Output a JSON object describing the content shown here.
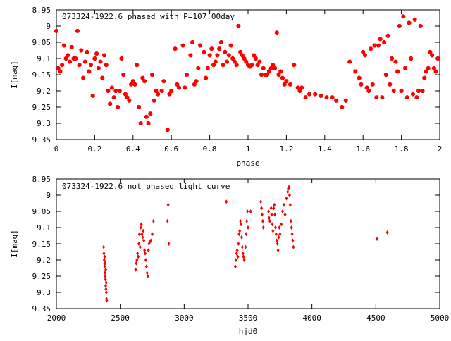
{
  "chart_data": [
    {
      "type": "scatter",
      "title": "073324-1922.6 phased with P=107.00day",
      "xlabel": "phase",
      "ylabel": "I[mag]",
      "xlim": [
        0,
        2
      ],
      "ylim": [
        9.35,
        8.95
      ],
      "y_inverted": true,
      "xticks": [
        "0",
        "0.2",
        "0.4",
        "0.6",
        "0.8",
        "1",
        "1.2",
        "1.4",
        "1.6",
        "1.8",
        "2"
      ],
      "yticks": [
        "8.95",
        "9",
        "9.05",
        "9.1",
        "9.15",
        "9.2",
        "9.25",
        "9.3",
        "9.35"
      ],
      "grid": false,
      "marker_color": "#ff0000",
      "points": [
        [
          0.0,
          9.015
        ],
        [
          0.01,
          9.13
        ],
        [
          0.02,
          9.14
        ],
        [
          0.03,
          9.12
        ],
        [
          0.04,
          9.06
        ],
        [
          0.05,
          9.1
        ],
        [
          0.06,
          9.09
        ],
        [
          0.07,
          9.11
        ],
        [
          0.08,
          9.065
        ],
        [
          0.09,
          9.1
        ],
        [
          0.1,
          9.1
        ],
        [
          0.11,
          9.015
        ],
        [
          0.12,
          9.12
        ],
        [
          0.13,
          9.075
        ],
        [
          0.14,
          9.16
        ],
        [
          0.15,
          9.11
        ],
        [
          0.16,
          9.08
        ],
        [
          0.17,
          9.14
        ],
        [
          0.18,
          9.12
        ],
        [
          0.19,
          9.215
        ],
        [
          0.2,
          9.1
        ],
        [
          0.21,
          9.085
        ],
        [
          0.22,
          9.13
        ],
        [
          0.23,
          9.11
        ],
        [
          0.24,
          9.16
        ],
        [
          0.25,
          9.09
        ],
        [
          0.26,
          9.12
        ],
        [
          0.27,
          9.2
        ],
        [
          0.28,
          9.24
        ],
        [
          0.29,
          9.19
        ],
        [
          0.3,
          9.22
        ],
        [
          0.31,
          9.2
        ],
        [
          0.32,
          9.25
        ],
        [
          0.33,
          9.2
        ],
        [
          0.34,
          9.1
        ],
        [
          0.35,
          9.15
        ],
        [
          0.36,
          9.21
        ],
        [
          0.37,
          9.22
        ],
        [
          0.38,
          9.23
        ],
        [
          0.39,
          9.18
        ],
        [
          0.4,
          9.17
        ],
        [
          0.41,
          9.18
        ],
        [
          0.42,
          9.12
        ],
        [
          0.43,
          9.25
        ],
        [
          0.44,
          9.3
        ],
        [
          0.45,
          9.16
        ],
        [
          0.46,
          9.17
        ],
        [
          0.47,
          9.28
        ],
        [
          0.48,
          9.3
        ],
        [
          0.49,
          9.27
        ],
        [
          0.5,
          9.15
        ],
        [
          0.51,
          9.23
        ],
        [
          0.52,
          9.2
        ],
        [
          0.53,
          9.21
        ],
        [
          0.55,
          9.2
        ],
        [
          0.56,
          9.17
        ],
        [
          0.58,
          9.32
        ],
        [
          0.59,
          9.21
        ],
        [
          0.6,
          9.2
        ],
        [
          0.62,
          9.07
        ],
        [
          0.63,
          9.18
        ],
        [
          0.64,
          9.19
        ],
        [
          0.66,
          9.06
        ],
        [
          0.67,
          9.19
        ],
        [
          0.68,
          9.15
        ],
        [
          0.7,
          9.09
        ],
        [
          0.71,
          9.05
        ],
        [
          0.72,
          9.18
        ],
        [
          0.73,
          9.17
        ],
        [
          0.74,
          9.13
        ],
        [
          0.75,
          9.06
        ],
        [
          0.77,
          9.08
        ],
        [
          0.78,
          9.16
        ],
        [
          0.79,
          9.13
        ],
        [
          0.8,
          9.09
        ],
        [
          0.81,
          9.07
        ],
        [
          0.82,
          9.12
        ],
        [
          0.83,
          9.11
        ],
        [
          0.84,
          9.09
        ],
        [
          0.85,
          9.07
        ],
        [
          0.86,
          9.05
        ],
        [
          0.87,
          9.12
        ],
        [
          0.88,
          9.08
        ],
        [
          0.89,
          9.11
        ],
        [
          0.9,
          9.09
        ],
        [
          0.91,
          9.06
        ],
        [
          0.92,
          9.1
        ],
        [
          0.93,
          9.11
        ],
        [
          0.94,
          9.12
        ],
        [
          0.95,
          9.0
        ],
        [
          0.96,
          9.08
        ],
        [
          0.97,
          9.09
        ],
        [
          0.98,
          9.1
        ],
        [
          0.99,
          9.11
        ],
        [
          1.0,
          9.12
        ],
        [
          1.01,
          9.125
        ],
        [
          1.02,
          9.12
        ],
        [
          1.03,
          9.09
        ],
        [
          1.04,
          9.1
        ],
        [
          1.05,
          9.12
        ],
        [
          1.06,
          9.11
        ],
        [
          1.07,
          9.15
        ],
        [
          1.08,
          9.13
        ],
        [
          1.09,
          9.15
        ],
        [
          1.1,
          9.15
        ],
        [
          1.11,
          9.14
        ],
        [
          1.12,
          9.13
        ],
        [
          1.13,
          9.12
        ],
        [
          1.14,
          9.13
        ],
        [
          1.15,
          9.02
        ],
        [
          1.16,
          9.15
        ],
        [
          1.17,
          9.14
        ],
        [
          1.18,
          9.16
        ],
        [
          1.19,
          9.18
        ],
        [
          1.2,
          9.17
        ],
        [
          1.22,
          9.18
        ],
        [
          1.24,
          9.12
        ],
        [
          1.26,
          9.19
        ],
        [
          1.27,
          9.2
        ],
        [
          1.28,
          9.19
        ],
        [
          1.3,
          9.22
        ],
        [
          1.32,
          9.21
        ],
        [
          1.35,
          9.21
        ],
        [
          1.38,
          9.215
        ],
        [
          1.41,
          9.22
        ],
        [
          1.44,
          9.22
        ],
        [
          1.46,
          9.23
        ],
        [
          1.49,
          9.25
        ],
        [
          1.51,
          9.23
        ],
        [
          1.53,
          9.11
        ],
        [
          1.56,
          9.14
        ],
        [
          1.58,
          9.16
        ],
        [
          1.59,
          9.18
        ],
        [
          1.6,
          9.08
        ],
        [
          1.61,
          9.09
        ],
        [
          1.62,
          9.19
        ],
        [
          1.63,
          9.2
        ],
        [
          1.64,
          9.07
        ],
        [
          1.65,
          9.18
        ],
        [
          1.66,
          9.06
        ],
        [
          1.67,
          9.22
        ],
        [
          1.68,
          9.06
        ],
        [
          1.69,
          9.04
        ],
        [
          1.7,
          9.22
        ],
        [
          1.71,
          9.05
        ],
        [
          1.72,
          9.15
        ],
        [
          1.73,
          9.03
        ],
        [
          1.74,
          9.18
        ],
        [
          1.75,
          9.1
        ],
        [
          1.76,
          9.2
        ],
        [
          1.77,
          9.11
        ],
        [
          1.78,
          9.14
        ],
        [
          1.79,
          9.0
        ],
        [
          1.8,
          9.2
        ],
        [
          1.81,
          8.97
        ],
        [
          1.82,
          9.13
        ],
        [
          1.83,
          9.22
        ],
        [
          1.84,
          8.99
        ],
        [
          1.85,
          9.1
        ],
        [
          1.86,
          9.21
        ],
        [
          1.87,
          8.98
        ],
        [
          1.88,
          9.22
        ],
        [
          1.89,
          9.2
        ],
        [
          1.9,
          9.0
        ],
        [
          1.91,
          9.2
        ],
        [
          1.92,
          9.16
        ],
        [
          1.93,
          9.14
        ],
        [
          1.94,
          9.13
        ],
        [
          1.95,
          9.08
        ],
        [
          1.96,
          9.09
        ],
        [
          1.97,
          9.13
        ],
        [
          1.98,
          9.14
        ],
        [
          1.99,
          9.1
        ]
      ]
    },
    {
      "type": "scatter",
      "title": "073324-1922.6 not phased light curve",
      "xlabel": "hjd0",
      "ylabel": "I[mag]",
      "xlim": [
        2000,
        5000
      ],
      "ylim": [
        9.35,
        8.95
      ],
      "y_inverted": true,
      "xticks": [
        "2000",
        "2500",
        "3000",
        "3500",
        "4000",
        "4500",
        "5000"
      ],
      "yticks": [
        "8.95",
        "9",
        "9.05",
        "9.1",
        "9.15",
        "9.2",
        "9.25",
        "9.3",
        "9.35"
      ],
      "grid": false,
      "marker_color": "#ff0000",
      "points": [
        [
          2370,
          9.16
        ],
        [
          2372,
          9.18
        ],
        [
          2374,
          9.2
        ],
        [
          2376,
          9.21
        ],
        [
          2378,
          9.22
        ],
        [
          2380,
          9.24
        ],
        [
          2382,
          9.25
        ],
        [
          2384,
          9.26
        ],
        [
          2386,
          9.28
        ],
        [
          2388,
          9.29
        ],
        [
          2390,
          9.3
        ],
        [
          2392,
          9.32
        ],
        [
          2394,
          9.325
        ],
        [
          2378,
          9.19
        ],
        [
          2382,
          9.21
        ],
        [
          2386,
          9.23
        ],
        [
          2390,
          9.27
        ],
        [
          2620,
          9.23
        ],
        [
          2625,
          9.21
        ],
        [
          2630,
          9.2
        ],
        [
          2635,
          9.18
        ],
        [
          2640,
          9.19
        ],
        [
          2645,
          9.15
        ],
        [
          2650,
          9.12
        ],
        [
          2655,
          9.16
        ],
        [
          2660,
          9.1
        ],
        [
          2665,
          9.09
        ],
        [
          2670,
          9.12
        ],
        [
          2675,
          9.13
        ],
        [
          2680,
          9.11
        ],
        [
          2685,
          9.14
        ],
        [
          2690,
          9.17
        ],
        [
          2695,
          9.18
        ],
        [
          2700,
          9.2
        ],
        [
          2705,
          9.22
        ],
        [
          2710,
          9.24
        ],
        [
          2715,
          9.25
        ],
        [
          2720,
          9.17
        ],
        [
          2725,
          9.15
        ],
        [
          2730,
          9.145
        ],
        [
          2740,
          9.14
        ],
        [
          2750,
          9.12
        ],
        [
          2760,
          9.08
        ],
        [
          2870,
          9.08
        ],
        [
          2875,
          9.03
        ],
        [
          2880,
          9.15
        ],
        [
          3330,
          9.02
        ],
        [
          3400,
          9.22
        ],
        [
          3405,
          9.2
        ],
        [
          3410,
          9.18
        ],
        [
          3415,
          9.17
        ],
        [
          3420,
          9.19
        ],
        [
          3425,
          9.15
        ],
        [
          3430,
          9.12
        ],
        [
          3435,
          9.11
        ],
        [
          3440,
          9.08
        ],
        [
          3445,
          9.09
        ],
        [
          3450,
          9.13
        ],
        [
          3455,
          9.16
        ],
        [
          3460,
          9.18
        ],
        [
          3465,
          9.19
        ],
        [
          3470,
          9.2
        ],
        [
          3480,
          9.16
        ],
        [
          3485,
          9.12
        ],
        [
          3490,
          9.08
        ],
        [
          3495,
          9.05
        ],
        [
          3500,
          9.1
        ],
        [
          3520,
          9.05
        ],
        [
          3600,
          9.02
        ],
        [
          3605,
          9.04
        ],
        [
          3610,
          9.06
        ],
        [
          3615,
          9.08
        ],
        [
          3620,
          9.1
        ],
        [
          3660,
          9.05
        ],
        [
          3665,
          9.07
        ],
        [
          3670,
          9.08
        ],
        [
          3680,
          9.04
        ],
        [
          3685,
          9.06
        ],
        [
          3690,
          9.09
        ],
        [
          3695,
          9.11
        ],
        [
          3700,
          9.04
        ],
        [
          3705,
          9.03
        ],
        [
          3710,
          9.06
        ],
        [
          3715,
          9.1
        ],
        [
          3720,
          9.12
        ],
        [
          3725,
          9.14
        ],
        [
          3730,
          9.15
        ],
        [
          3735,
          9.17
        ],
        [
          3740,
          9.13
        ],
        [
          3745,
          9.1
        ],
        [
          3750,
          9.12
        ],
        [
          3760,
          9.09
        ],
        [
          3770,
          9.05
        ],
        [
          3780,
          9.03
        ],
        [
          3790,
          9.06
        ],
        [
          3800,
          9.01
        ],
        [
          3810,
          8.99
        ],
        [
          3815,
          8.98
        ],
        [
          3820,
          8.975
        ],
        [
          3825,
          9.0
        ],
        [
          3830,
          9.03
        ],
        [
          3835,
          9.08
        ],
        [
          3840,
          9.1
        ],
        [
          3845,
          9.12
        ],
        [
          3850,
          9.14
        ],
        [
          3855,
          9.16
        ],
        [
          4510,
          9.135
        ],
        [
          4590,
          9.115
        ]
      ]
    }
  ]
}
